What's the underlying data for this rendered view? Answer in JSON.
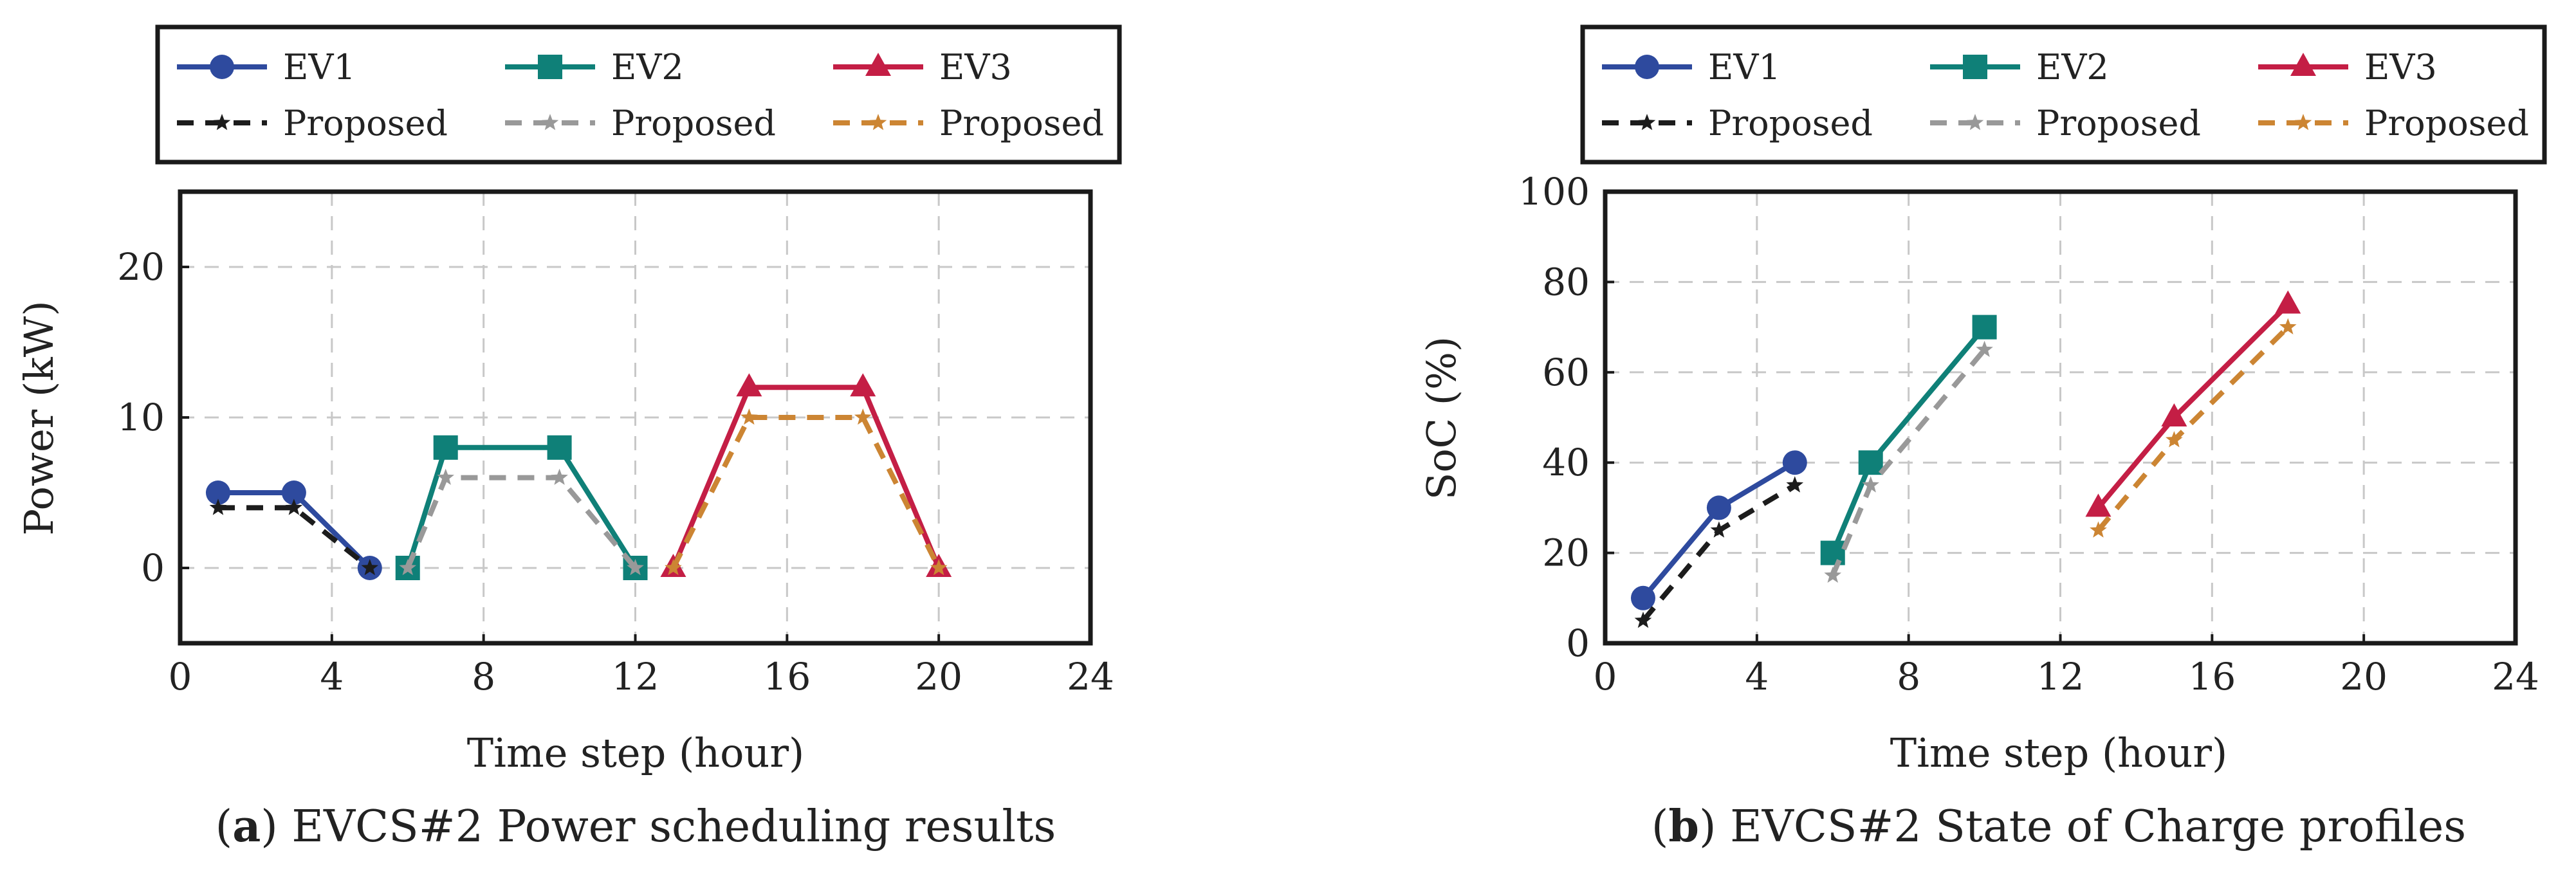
{
  "chart_data": [
    {
      "id": "a",
      "type": "line",
      "caption": {
        "letter": "a",
        "text": ") EVCS#2 Power scheduling results",
        "open": "("
      },
      "xlabel": "Time step (hour)",
      "ylabel": "Power (kW)",
      "xlim": [
        0,
        24
      ],
      "ylim": [
        -5,
        25
      ],
      "xticks": [
        0,
        4,
        8,
        12,
        16,
        20,
        24
      ],
      "yticks": [
        0,
        10,
        20
      ],
      "grid": true,
      "legend": {
        "position": "top",
        "columns": 3
      },
      "series": [
        {
          "name": "EV1",
          "color": "#2e4a9e",
          "style": "solid",
          "marker": "circle",
          "x": [
            1,
            3,
            5
          ],
          "y": [
            5,
            5,
            0
          ]
        },
        {
          "name": "Proposed",
          "color": "#1c1c1c",
          "style": "dashed",
          "marker": "star",
          "x": [
            1,
            3,
            5
          ],
          "y": [
            4,
            4,
            0
          ]
        },
        {
          "name": "EV2",
          "color": "#0f8078",
          "style": "solid",
          "marker": "square",
          "x": [
            6,
            7,
            10,
            12
          ],
          "y": [
            0,
            8,
            8,
            0
          ]
        },
        {
          "name": "Proposed",
          "color": "#999999",
          "style": "dashed",
          "marker": "star",
          "x": [
            6,
            7,
            10,
            12
          ],
          "y": [
            0,
            6,
            6,
            0
          ]
        },
        {
          "name": "EV3",
          "color": "#c41e45",
          "style": "solid",
          "marker": "triangle",
          "x": [
            13,
            15,
            18,
            20
          ],
          "y": [
            0,
            12,
            12,
            0
          ]
        },
        {
          "name": "Proposed",
          "color": "#cc8533",
          "style": "dashed",
          "marker": "star",
          "x": [
            13,
            15,
            18,
            20
          ],
          "y": [
            0,
            10,
            10,
            0
          ]
        }
      ]
    },
    {
      "id": "b",
      "type": "line",
      "caption": {
        "letter": "b",
        "text": ") EVCS#2 State of Charge profiles",
        "open": "("
      },
      "xlabel": "Time step (hour)",
      "ylabel": "SoC (%)",
      "xlim": [
        0,
        24
      ],
      "ylim": [
        0,
        100
      ],
      "xticks": [
        0,
        4,
        8,
        12,
        16,
        20,
        24
      ],
      "yticks": [
        0,
        20,
        40,
        60,
        80,
        100
      ],
      "grid": true,
      "legend": {
        "position": "top",
        "columns": 3
      },
      "series": [
        {
          "name": "EV1",
          "color": "#2e4a9e",
          "style": "solid",
          "marker": "circle",
          "x": [
            1,
            3,
            5
          ],
          "y": [
            10,
            30,
            40
          ]
        },
        {
          "name": "Proposed",
          "color": "#1c1c1c",
          "style": "dashed",
          "marker": "star",
          "x": [
            1,
            3,
            5
          ],
          "y": [
            5,
            25,
            35
          ]
        },
        {
          "name": "EV2",
          "color": "#0f8078",
          "style": "solid",
          "marker": "square",
          "x": [
            6,
            7,
            10
          ],
          "y": [
            20,
            40,
            70
          ]
        },
        {
          "name": "Proposed",
          "color": "#999999",
          "style": "dashed",
          "marker": "star",
          "x": [
            6,
            7,
            10
          ],
          "y": [
            15,
            35,
            65
          ]
        },
        {
          "name": "EV3",
          "color": "#c41e45",
          "style": "solid",
          "marker": "triangle",
          "x": [
            13,
            15,
            18
          ],
          "y": [
            30,
            50,
            75
          ]
        },
        {
          "name": "Proposed",
          "color": "#cc8533",
          "style": "dashed",
          "marker": "star",
          "x": [
            13,
            15,
            18
          ],
          "y": [
            25,
            45,
            70
          ]
        }
      ]
    }
  ]
}
